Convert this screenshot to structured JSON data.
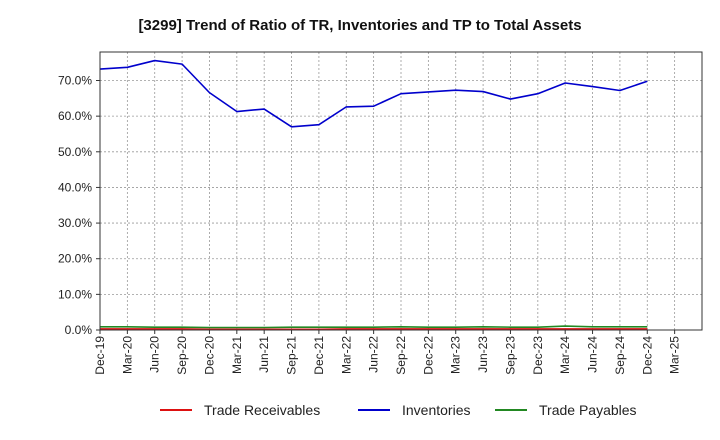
{
  "chart_data": {
    "type": "line",
    "title": "[3299]  Trend of Ratio of TR, Inventories and TP to Total Assets",
    "xlabel": "",
    "ylabel": "",
    "x_ticks": [
      "Dec-19",
      "Mar-20",
      "Jun-20",
      "Sep-20",
      "Dec-20",
      "Mar-21",
      "Jun-21",
      "Sep-21",
      "Dec-21",
      "Mar-22",
      "Jun-22",
      "Sep-22",
      "Dec-22",
      "Mar-23",
      "Jun-23",
      "Sep-23",
      "Dec-23",
      "Mar-24",
      "Jun-24",
      "Sep-24",
      "Dec-24",
      "Mar-25"
    ],
    "categories": [
      "Dec-19",
      "Mar-20",
      "Jun-20",
      "Sep-20",
      "Dec-20",
      "Mar-21",
      "Jun-21",
      "Sep-21",
      "Dec-21",
      "Mar-22",
      "Jun-22",
      "Sep-22",
      "Dec-22",
      "Mar-23",
      "Jun-23",
      "Sep-23",
      "Dec-23",
      "Mar-24",
      "Jun-24",
      "Sep-24",
      "Dec-24"
    ],
    "y_ticks": [
      "0.0%",
      "10.0%",
      "20.0%",
      "30.0%",
      "40.0%",
      "50.0%",
      "60.0%",
      "70.0%"
    ],
    "ylim": [
      0,
      78
    ],
    "grid": true,
    "legend_position": "bottom",
    "series": [
      {
        "name": "Trade Receivables",
        "color": "#dd1111",
        "values": [
          0.3,
          0.3,
          0.3,
          0.3,
          0.2,
          0.2,
          0.2,
          0.2,
          0.2,
          0.3,
          0.3,
          0.3,
          0.3,
          0.3,
          0.3,
          0.3,
          0.3,
          0.3,
          0.3,
          0.3,
          0.3
        ]
      },
      {
        "name": "Inventories",
        "color": "#0000cc",
        "values": [
          73.2,
          73.7,
          75.6,
          74.6,
          66.6,
          61.3,
          62.0,
          57.0,
          57.6,
          62.6,
          62.8,
          66.3,
          66.8,
          67.3,
          66.9,
          64.8,
          66.3,
          69.3,
          68.3,
          67.2,
          69.8
        ]
      },
      {
        "name": "Trade Payables",
        "color": "#228822",
        "values": [
          0.9,
          0.9,
          0.8,
          0.8,
          0.7,
          0.7,
          0.7,
          0.8,
          0.8,
          0.8,
          0.8,
          0.9,
          0.8,
          0.8,
          0.9,
          0.8,
          0.8,
          1.1,
          0.9,
          0.9,
          0.9
        ]
      }
    ]
  }
}
